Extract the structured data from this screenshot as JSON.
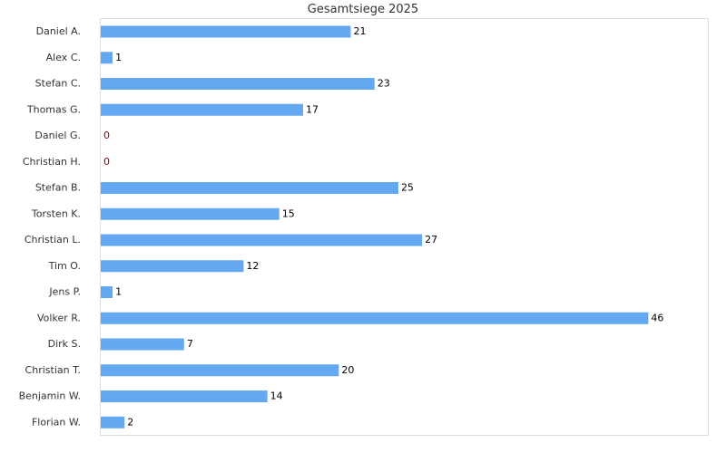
{
  "chart_data": {
    "type": "bar",
    "orientation": "horizontal",
    "title": "Gesamtsiege 2025",
    "categories": [
      "Daniel A.",
      "Alex C.",
      "Stefan C.",
      "Thomas G.",
      "Daniel G.",
      "Christian H.",
      "Stefan B.",
      "Torsten K.",
      "Christian L.",
      "Tim O.",
      "Jens P.",
      "Volker R.",
      "Dirk S.",
      "Christian T.",
      "Benjamin W.",
      "Florian W."
    ],
    "values": [
      21,
      1,
      23,
      17,
      0,
      0,
      25,
      15,
      27,
      12,
      1,
      46,
      7,
      20,
      14,
      2
    ],
    "xlim": [
      0,
      51
    ],
    "xlabel": "",
    "ylabel": "",
    "grid": false,
    "bar_color": "#63a8f0",
    "zero_label_color": "#8b0000"
  }
}
